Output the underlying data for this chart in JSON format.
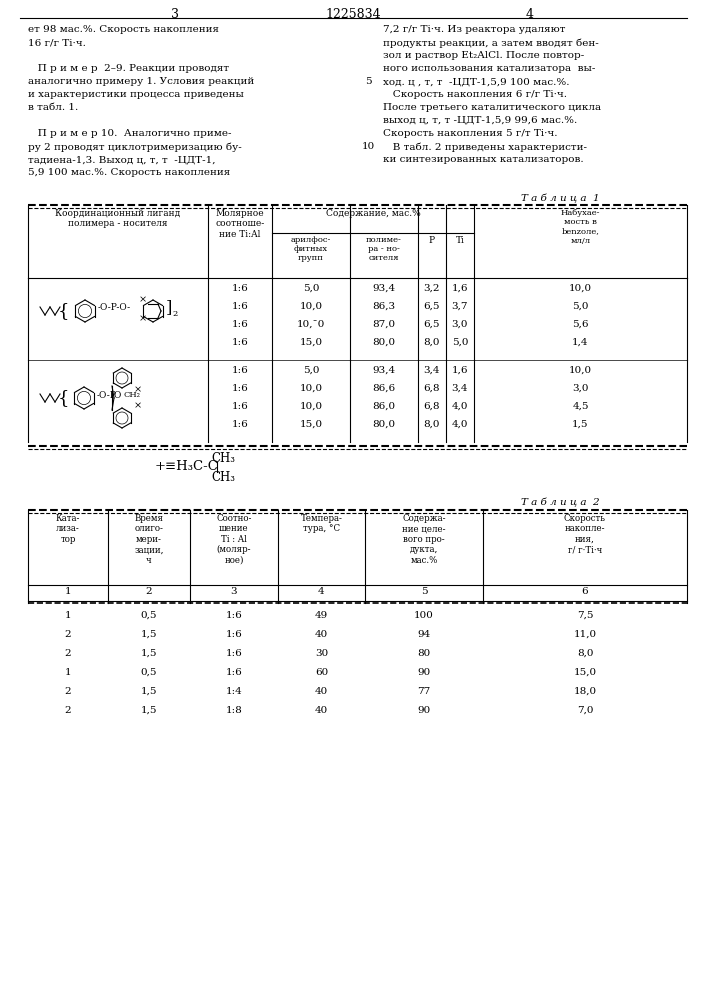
{
  "page_number_left": "3",
  "page_number_center": "1225834",
  "page_number_right": "4",
  "left_column_text": [
    "ет 98 мас.%. Скорость накопления",
    "16 г/г Ti·ч.",
    "",
    "   П р и м е р  2–9. Реакции проводят",
    "аналогично примеру 1. Условия реакций",
    "и характеристики процесса приведены",
    "в табл. 1.",
    "",
    "   П р и м е р 10.  Аналогично приме-",
    "ру 2 проводят циклотримеризацию бу-",
    "тадиена-1,3. Выход ц, т, т  -ЦДТ-1,",
    "5,9 100 мас.%. Скорость накопления"
  ],
  "right_column_text": [
    "7,2 г/г Ti·ч. Из реактора удаляют",
    "продукты реакции, а затем вводят бен-",
    "зол и раствор Et₂AlCl. После повтор-",
    "ного использования катализатора  вы-",
    "ход. ц , т, т  -ЦДТ-1,5,9 100 мас.%.",
    "   Скорость накопления 6 г/г Ti·ч.",
    "После третьего каталитического цикла",
    "выход ц, т, т -ЦДТ-1,5,9 99,6 мас.%.",
    "Скорость накопления 5 г/т Ti·ч.",
    "   В табл. 2 приведены характеристи-",
    "ки синтезированных катализаторов."
  ],
  "line_numbers": {
    "5": 4,
    "10": 9
  },
  "table1_title": "Т а б л и ц а  1",
  "table1_data_group1": [
    [
      "1:6",
      "5,0",
      "93,4",
      "3,2",
      "1,6",
      "10,0"
    ],
    [
      "1:6",
      "10,0",
      "86,3",
      "6,5",
      "3,7",
      "5,0"
    ],
    [
      "1:6",
      "10,¯0",
      "87,0",
      "6,5",
      "3,0",
      "5,6"
    ],
    [
      "1:6",
      "15,0",
      "80,0",
      "8,0",
      "5,0",
      "1,4"
    ]
  ],
  "table1_data_group2": [
    [
      "1:6",
      "5,0",
      "93,4",
      "3,4",
      "1,6",
      "10,0"
    ],
    [
      "1:6",
      "10,0",
      "86,6",
      "6,8",
      "3,4",
      "3,0"
    ],
    [
      "1:6",
      "10,0",
      "86,0",
      "6,8",
      "4,0",
      "4,5"
    ],
    [
      "1:6",
      "15,0",
      "80,0",
      "8,0",
      "4,0",
      "1,5"
    ]
  ],
  "table2_title": "Т а б л и ц а  2",
  "table2_col_numbers": [
    "1",
    "2",
    "3",
    "4",
    "5",
    "6"
  ],
  "table2_data": [
    [
      "1",
      "0,5",
      "1:6",
      "49",
      "100",
      "7,5"
    ],
    [
      "2",
      "1,5",
      "1:6",
      "40",
      "94",
      "11,0"
    ],
    [
      "2",
      "1,5",
      "1:6",
      "30",
      "80",
      "8,0"
    ],
    [
      "1",
      "0,5",
      "1:6",
      "60",
      "90",
      "15,0"
    ],
    [
      "2",
      "1,5",
      "1:4",
      "40",
      "77",
      "18,0"
    ],
    [
      "2",
      "1,5",
      "1:8",
      "40",
      "90",
      "7,0"
    ]
  ],
  "bg_color": "#ffffff"
}
